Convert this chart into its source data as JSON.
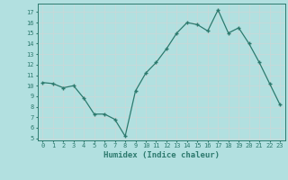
{
  "x": [
    0,
    1,
    2,
    3,
    4,
    5,
    6,
    7,
    8,
    9,
    10,
    11,
    12,
    13,
    14,
    15,
    16,
    17,
    18,
    19,
    20,
    21,
    22,
    23
  ],
  "y": [
    10.3,
    10.2,
    9.8,
    10.0,
    8.8,
    7.3,
    7.3,
    6.8,
    5.2,
    9.5,
    11.2,
    12.2,
    13.5,
    15.0,
    16.0,
    15.8,
    15.2,
    17.2,
    15.0,
    15.5,
    14.0,
    12.2,
    10.2,
    8.2
  ],
  "xlabel": "Humidex (Indice chaleur)",
  "xlim": [
    -0.5,
    23.5
  ],
  "ylim": [
    4.8,
    17.8
  ],
  "yticks": [
    5,
    6,
    7,
    8,
    9,
    10,
    11,
    12,
    13,
    14,
    15,
    16,
    17
  ],
  "xticks": [
    0,
    1,
    2,
    3,
    4,
    5,
    6,
    7,
    8,
    9,
    10,
    11,
    12,
    13,
    14,
    15,
    16,
    17,
    18,
    19,
    20,
    21,
    22,
    23
  ],
  "line_color": "#2d7a6e",
  "marker": "+",
  "bg_color": "#b2e0e0",
  "grid_color": "#c8d8d8",
  "label_color": "#2d7a6e",
  "tick_fontsize": 5.0,
  "xlabel_fontsize": 6.5
}
